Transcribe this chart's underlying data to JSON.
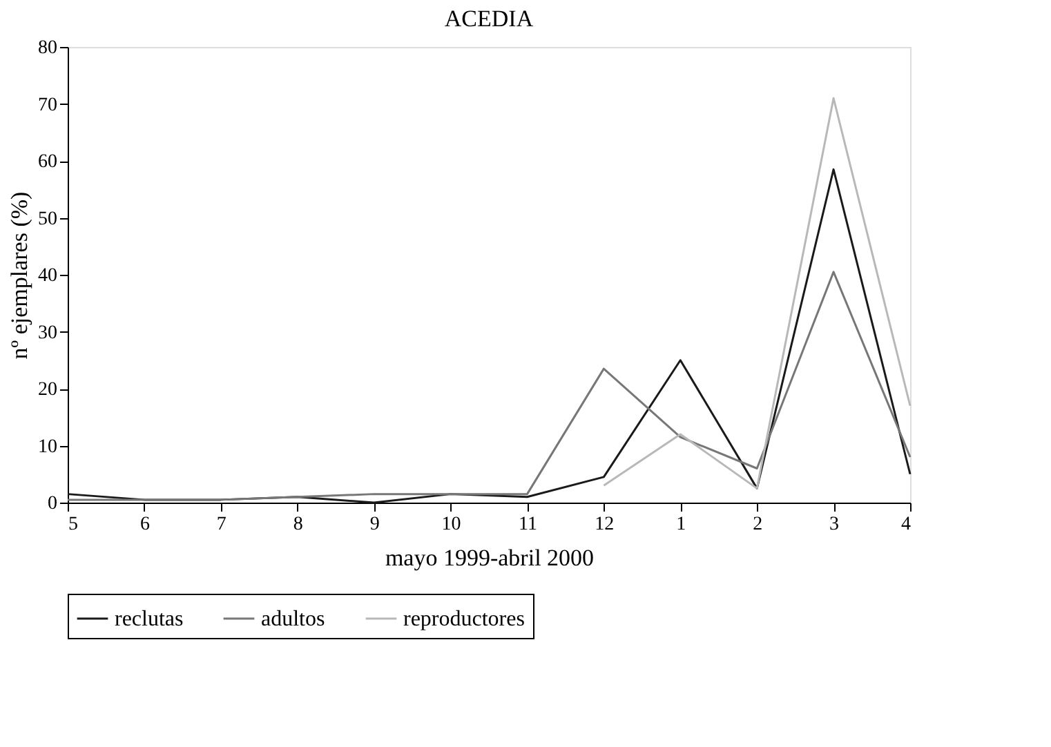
{
  "chart_data": {
    "type": "line",
    "title": "ACEDIA",
    "xlabel": "mayo 1999-abril 2000",
    "ylabel": "nº ejemplares (%)",
    "categories": [
      "5",
      "6",
      "7",
      "8",
      "9",
      "10",
      "11",
      "12",
      "1",
      "2",
      "3",
      "4"
    ],
    "series": [
      {
        "name": "reclutas",
        "color": "#1a1a1a",
        "values": [
          1.5,
          0.5,
          0.5,
          1,
          0,
          1.5,
          1,
          4.5,
          25,
          2.5,
          58.5,
          5
        ]
      },
      {
        "name": "adultos",
        "color": "#777777",
        "values": [
          0.5,
          0.5,
          0.5,
          1,
          1.5,
          1.5,
          1.5,
          23.5,
          11.5,
          6,
          40.5,
          8
        ]
      },
      {
        "name": "reproductores",
        "color": "#b8b8b8",
        "values": [
          null,
          null,
          null,
          null,
          null,
          null,
          null,
          3,
          12,
          2.5,
          71,
          17
        ]
      }
    ],
    "ylim": [
      0,
      80
    ],
    "yticks": [
      0,
      10,
      20,
      30,
      40,
      50,
      60,
      70,
      80
    ],
    "grid": false,
    "legend": "bottom",
    "marker": "none",
    "line_style": "solid"
  }
}
